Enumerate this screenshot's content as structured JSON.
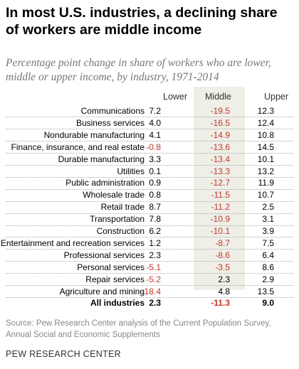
{
  "title": "In most U.S. industries, a declining share of workers are middle income",
  "subtitle": "Percentage point change in share of workers who are lower, middle or upper income, by industry, 1971-2014",
  "chart_data": {
    "type": "table",
    "columns": [
      "Lower",
      "Middle",
      "Upper"
    ],
    "rows": [
      {
        "label": "Communications",
        "values": [
          "7.2",
          "-19.5",
          "12.3"
        ]
      },
      {
        "label": "Business services",
        "values": [
          "4.0",
          "-16.5",
          "12.4"
        ]
      },
      {
        "label": "Nondurable manufacturing",
        "values": [
          "4.1",
          "-14.9",
          "10.8"
        ]
      },
      {
        "label": "Finance, insurance, and real estate",
        "values": [
          "-0.8",
          "-13.6",
          "14.5"
        ]
      },
      {
        "label": "Durable manufacturing",
        "values": [
          "3.3",
          "-13.4",
          "10.1"
        ]
      },
      {
        "label": "Utilities",
        "values": [
          "0.1",
          "-13.3",
          "13.2"
        ]
      },
      {
        "label": "Public administration",
        "values": [
          "0.9",
          "-12.7",
          "11.9"
        ]
      },
      {
        "label": "Wholesale trade",
        "values": [
          "0.8",
          "-11.5",
          "10.7"
        ]
      },
      {
        "label": "Retail trade",
        "values": [
          "8.7",
          "-11.2",
          "2.5"
        ]
      },
      {
        "label": "Transportation",
        "values": [
          "7.8",
          "-10.9",
          "3.1"
        ]
      },
      {
        "label": "Construction",
        "values": [
          "6.2",
          "-10.1",
          "3.9"
        ]
      },
      {
        "label": "Entertainment and recreation services",
        "values": [
          "1.2",
          "-8.7",
          "7.5"
        ]
      },
      {
        "label": "Professional services",
        "values": [
          "2.3",
          "-8.6",
          "6.4"
        ]
      },
      {
        "label": "Personal services",
        "values": [
          "-5.1",
          "-3.5",
          "8.6"
        ]
      },
      {
        "label": "Repair services",
        "values": [
          "-5.2",
          "2.3",
          "2.9"
        ]
      },
      {
        "label": "Agriculture and mining",
        "values": [
          "-18.4",
          "4.8",
          "13.5"
        ]
      },
      {
        "label": "All industries",
        "values": [
          "2.3",
          "-11.3",
          "9.0"
        ],
        "bold": true
      }
    ],
    "negative_color": "#c0392b",
    "positive_color": "#000000",
    "middle_column_highlight": "#efefe7"
  },
  "source": "Source: Pew Research Center analysis of the Current Population Survey, Annual Social and Economic Supplements",
  "brand": "PEW RESEARCH CENTER"
}
